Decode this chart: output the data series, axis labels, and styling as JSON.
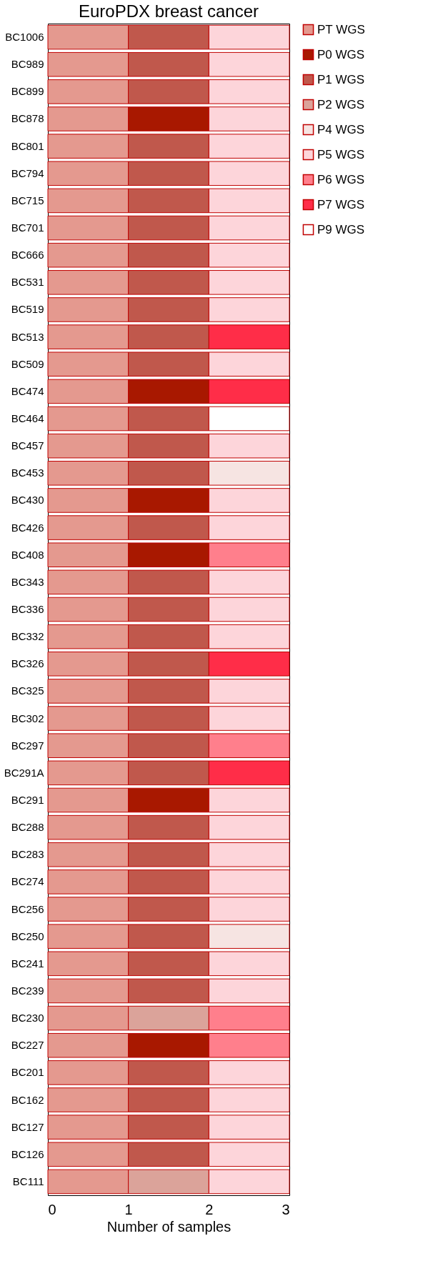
{
  "chart_data": {
    "type": "bar",
    "title": "EuroPDX breast cancer",
    "xlabel": "Number of samples",
    "orientation": "horizontal",
    "stacked": true,
    "legend": "top right",
    "grid": false,
    "categories": [
      "BC1006",
      "BC989",
      "BC899",
      "BC878",
      "BC801",
      "BC794",
      "BC715",
      "BC701",
      "BC666",
      "BC531",
      "BC519",
      "BC513",
      "BC509",
      "BC474",
      "BC464",
      "BC457",
      "BC453",
      "BC430",
      "BC426",
      "BC408",
      "BC343",
      "BC336",
      "BC332",
      "BC326",
      "BC325",
      "BC302",
      "BC297",
      "BC291A",
      "BC291",
      "BC288",
      "BC283",
      "BC274",
      "BC256",
      "BC250",
      "BC241",
      "BC239",
      "BC230",
      "BC227",
      "BC201",
      "BC162",
      "BC127",
      "BC126",
      "BC111"
    ],
    "xlim": [
      0,
      3
    ],
    "xticks": [
      0,
      1,
      2,
      3
    ],
    "series": [
      {
        "name": "PT WGS",
        "color": "#e4998f",
        "values": [
          1,
          1,
          1,
          1,
          1,
          1,
          1,
          1,
          1,
          1,
          1,
          1,
          1,
          1,
          1,
          1,
          1,
          1,
          1,
          1,
          1,
          1,
          1,
          1,
          1,
          1,
          1,
          1,
          1,
          1,
          1,
          1,
          1,
          1,
          1,
          1,
          1,
          1,
          1,
          1,
          1,
          1,
          1
        ]
      },
      {
        "name": "P0 WGS",
        "color": "#a81800",
        "values": [
          null,
          null,
          null,
          1,
          null,
          null,
          null,
          null,
          null,
          null,
          null,
          null,
          null,
          1,
          null,
          null,
          null,
          1,
          null,
          1,
          null,
          null,
          null,
          null,
          null,
          null,
          null,
          null,
          1,
          null,
          null,
          null,
          null,
          null,
          null,
          null,
          null,
          1,
          null,
          null,
          null,
          null,
          null
        ]
      },
      {
        "name": "P1 WGS",
        "color": "#c0584c",
        "values": [
          1,
          1,
          1,
          null,
          1,
          1,
          1,
          1,
          1,
          1,
          1,
          1,
          1,
          null,
          1,
          1,
          1,
          null,
          1,
          null,
          1,
          1,
          1,
          1,
          1,
          1,
          1,
          1,
          null,
          1,
          1,
          1,
          1,
          1,
          1,
          1,
          null,
          null,
          1,
          1,
          1,
          1,
          null
        ]
      },
      {
        "name": "P2 WGS",
        "color": "#dba39a",
        "values": [
          null,
          null,
          null,
          null,
          null,
          null,
          null,
          null,
          null,
          null,
          null,
          null,
          null,
          null,
          null,
          null,
          null,
          null,
          null,
          null,
          null,
          null,
          null,
          null,
          null,
          null,
          null,
          null,
          null,
          null,
          null,
          null,
          null,
          null,
          null,
          null,
          1,
          null,
          null,
          null,
          null,
          null,
          1
        ]
      },
      {
        "name": "P4 WGS",
        "color": "#f6e4e2",
        "values": [
          null,
          null,
          null,
          null,
          null,
          null,
          null,
          null,
          null,
          null,
          null,
          null,
          null,
          null,
          null,
          null,
          1,
          null,
          null,
          null,
          null,
          null,
          null,
          null,
          null,
          null,
          null,
          null,
          null,
          null,
          null,
          null,
          null,
          1,
          null,
          null,
          null,
          null,
          null,
          null,
          null,
          null,
          null
        ]
      },
      {
        "name": "P5 WGS",
        "color": "#fdd5da",
        "values": [
          1,
          1,
          1,
          1,
          1,
          1,
          1,
          1,
          1,
          1,
          1,
          null,
          1,
          null,
          null,
          1,
          null,
          1,
          1,
          null,
          1,
          1,
          1,
          null,
          1,
          1,
          null,
          null,
          1,
          1,
          1,
          1,
          1,
          null,
          1,
          1,
          null,
          null,
          1,
          1,
          1,
          1,
          1
        ]
      },
      {
        "name": "P6 WGS",
        "color": "#ff7f8c",
        "values": [
          null,
          null,
          null,
          null,
          null,
          null,
          null,
          null,
          null,
          null,
          null,
          null,
          null,
          null,
          null,
          null,
          null,
          null,
          null,
          1,
          null,
          null,
          null,
          null,
          null,
          null,
          1,
          null,
          null,
          null,
          null,
          null,
          null,
          null,
          null,
          null,
          1,
          1,
          null,
          null,
          null,
          null,
          null
        ]
      },
      {
        "name": "P7 WGS",
        "color": "#ff2d48",
        "values": [
          null,
          null,
          null,
          null,
          null,
          null,
          null,
          null,
          null,
          null,
          null,
          1,
          null,
          1,
          null,
          null,
          null,
          null,
          null,
          null,
          null,
          null,
          null,
          1,
          null,
          null,
          null,
          1,
          null,
          null,
          null,
          null,
          null,
          null,
          null,
          null,
          null,
          null,
          null,
          null,
          null,
          null,
          null
        ]
      },
      {
        "name": "P9 WGS",
        "color": "#ffffff",
        "values": [
          null,
          null,
          null,
          null,
          null,
          null,
          null,
          null,
          null,
          null,
          null,
          null,
          null,
          null,
          1,
          null,
          null,
          null,
          null,
          null,
          null,
          null,
          null,
          null,
          null,
          null,
          null,
          null,
          null,
          null,
          null,
          null,
          null,
          null,
          null,
          null,
          null,
          null,
          null,
          null,
          null,
          null,
          null
        ]
      }
    ]
  }
}
